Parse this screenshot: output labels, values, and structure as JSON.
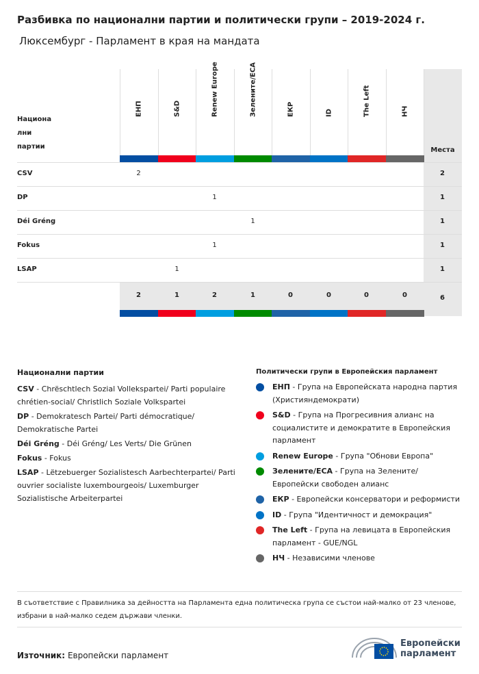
{
  "title": "Разбивка по национални партии и политически групи – 2019-2024 г.",
  "subtitle": "Люксембург - Парламент в края на мандата",
  "chart_data": {
    "type": "table",
    "row_header": "Национални партии",
    "row_header_lines": [
      "Национа",
      "лни",
      "партии"
    ],
    "total_header": "Места",
    "groups": [
      {
        "name": "ЕНП",
        "color": "#034EA2"
      },
      {
        "name": "S&D",
        "color": "#F0001C"
      },
      {
        "name": "Renew Europe",
        "color": "#009EE0"
      },
      {
        "name": "Зелените/ЕСА",
        "color": "#008A00"
      },
      {
        "name": "ЕКР",
        "color": "#1F63A7"
      },
      {
        "name": "ID",
        "color": "#0073C6"
      },
      {
        "name": "The Left",
        "color": "#E02626"
      },
      {
        "name": "НЧ",
        "color": "#666666"
      }
    ],
    "rows": [
      {
        "party": "CSV",
        "values": [
          2,
          null,
          null,
          null,
          null,
          null,
          null,
          null
        ],
        "total": "2"
      },
      {
        "party": "DP",
        "values": [
          null,
          null,
          1,
          null,
          null,
          null,
          null,
          null
        ],
        "total": "1"
      },
      {
        "party": "Déi Gréng",
        "values": [
          null,
          null,
          null,
          1,
          null,
          null,
          null,
          null
        ],
        "total": "1"
      },
      {
        "party": "Fokus",
        "values": [
          null,
          null,
          1,
          null,
          null,
          null,
          null,
          null
        ],
        "total": "1"
      },
      {
        "party": "LSAP",
        "values": [
          null,
          1,
          null,
          null,
          null,
          null,
          null,
          null
        ],
        "total": "1"
      }
    ],
    "column_totals": [
      "2",
      "1",
      "2",
      "1",
      "0",
      "0",
      "0",
      "0"
    ],
    "grand_total": "6"
  },
  "legend": {
    "parties_title": "Национални партии",
    "parties": [
      {
        "abbr": "CSV",
        "desc": "Chrëschtlech Sozial Vollekspartei/ Parti populaire chrétien-social/ Christlich Soziale Volkspartei"
      },
      {
        "abbr": "DP",
        "desc": "Demokratesch Partei/ Parti démocratique/ Demokratische Partei"
      },
      {
        "abbr": "Déi Gréng",
        "desc": "Déi Gréng/ Les Verts/ Die Grünen"
      },
      {
        "abbr": "Fokus",
        "desc": "Fokus"
      },
      {
        "abbr": "LSAP",
        "desc": "Lëtzebuerger Sozialistesch Aarbechterpartei/ Parti ouvrier socialiste luxembourgeois/ Luxemburger Sozialistische Arbeiterpartei"
      }
    ],
    "groups_title": "Политически групи в Европейския парламент",
    "groups": [
      {
        "abbr": "ЕНП",
        "desc": "Група на Европейската народна партия (Християндемократи)",
        "color": "#034EA2"
      },
      {
        "abbr": "S&D",
        "desc": "Група на Прогресивния алианс на социалистите и демократите в Европейския парламент",
        "color": "#F0001C"
      },
      {
        "abbr": "Renew Europe",
        "desc": "Група \"Обнови Европа\"",
        "color": "#009EE0"
      },
      {
        "abbr": "Зелените/ЕСА",
        "desc": "Група на Зелените/ Европейски свободен алианс",
        "color": "#008A00"
      },
      {
        "abbr": "ЕКР",
        "desc": "Европейски консерватори и реформисти",
        "color": "#1F63A7"
      },
      {
        "abbr": "ID",
        "desc": "Група \"Идентичност и демокрация\"",
        "color": "#0073C6"
      },
      {
        "abbr": "The Left",
        "desc": "Група на левицата в Европейския парламент - GUE/NGL",
        "color": "#E02626"
      },
      {
        "abbr": "НЧ",
        "desc": "Независими членове",
        "color": "#666666"
      }
    ]
  },
  "note": "В съответствие с Правилника за дейността на Парламента една политическа група се състои най-малко от 23 членове, избрани в най-малко седем държави членки.",
  "source_label": "Източник:",
  "source": "Европейски парламент",
  "logo_text": [
    "Европейски",
    "парламент"
  ]
}
